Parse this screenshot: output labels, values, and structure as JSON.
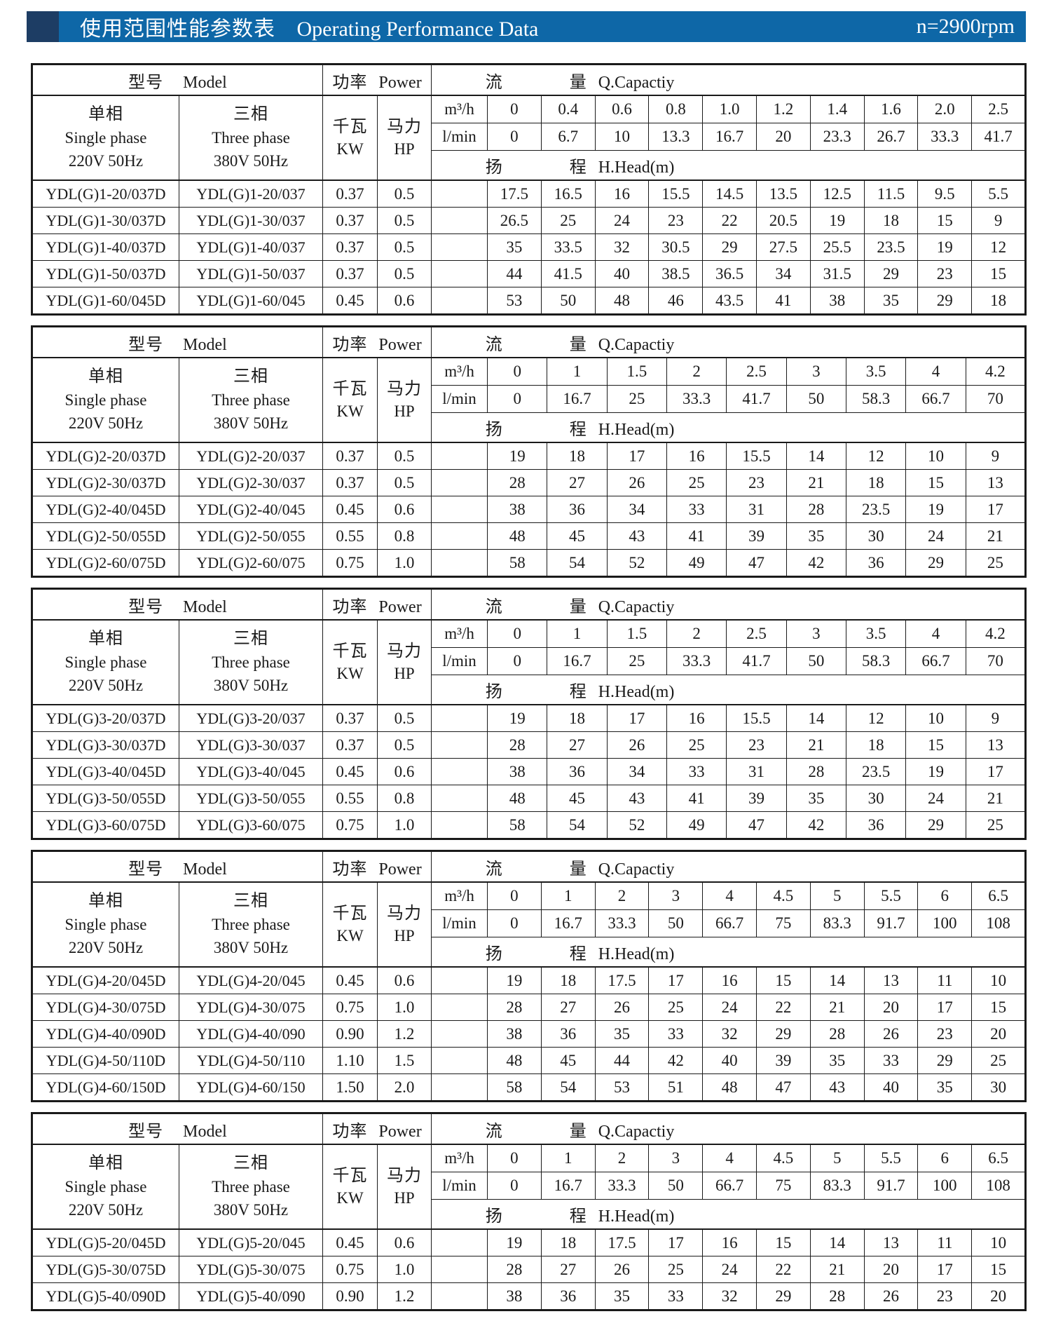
{
  "header": {
    "title_zh": "使用范围性能参数表",
    "title_en": "Operating Performance Data",
    "rpm": "n=2900rpm",
    "bar_color": "#0e67a7",
    "accent_color": "#1d3d64"
  },
  "labels": {
    "model_zh": "型号",
    "model_en": "Model",
    "power_zh": "功率",
    "power_en": "Power",
    "capacity_zh1": "流",
    "capacity_zh2": "量",
    "capacity_en": "Q.Capactiy",
    "single_zh": "单相",
    "single_en": "Single phase",
    "single_volt": "220V 50Hz",
    "three_zh": "三相",
    "three_en": "Three phase",
    "three_volt": "380V 50Hz",
    "kw_zh": "千瓦",
    "kw_en": "KW",
    "hp_zh": "马力",
    "hp_en": "HP",
    "m3h_unit": "m³/h",
    "lmin_unit": "l/min",
    "head_zh1": "扬",
    "head_zh2": "程",
    "head_en": "H.Head(m)"
  },
  "tables": [
    {
      "m3h": [
        "0",
        "0.4",
        "0.6",
        "0.8",
        "1.0",
        "1.2",
        "1.4",
        "1.6",
        "2.0",
        "2.5"
      ],
      "lmin": [
        "0",
        "6.7",
        "10",
        "13.3",
        "16.7",
        "20",
        "23.3",
        "26.7",
        "33.3",
        "41.7"
      ],
      "rows": [
        {
          "single": "YDL(G)1-20/037D",
          "three": "YDL(G)1-20/037",
          "kw": "0.37",
          "hp": "0.5",
          "head": [
            "17.5",
            "16.5",
            "16",
            "15.5",
            "14.5",
            "13.5",
            "12.5",
            "11.5",
            "9.5",
            "5.5"
          ]
        },
        {
          "single": "YDL(G)1-30/037D",
          "three": "YDL(G)1-30/037",
          "kw": "0.37",
          "hp": "0.5",
          "head": [
            "26.5",
            "25",
            "24",
            "23",
            "22",
            "20.5",
            "19",
            "18",
            "15",
            "9"
          ]
        },
        {
          "single": "YDL(G)1-40/037D",
          "three": "YDL(G)1-40/037",
          "kw": "0.37",
          "hp": "0.5",
          "head": [
            "35",
            "33.5",
            "32",
            "30.5",
            "29",
            "27.5",
            "25.5",
            "23.5",
            "19",
            "12"
          ]
        },
        {
          "single": "YDL(G)1-50/037D",
          "three": "YDL(G)1-50/037",
          "kw": "0.37",
          "hp": "0.5",
          "head": [
            "44",
            "41.5",
            "40",
            "38.5",
            "36.5",
            "34",
            "31.5",
            "29",
            "23",
            "15"
          ]
        },
        {
          "single": "YDL(G)1-60/045D",
          "three": "YDL(G)1-60/045",
          "kw": "0.45",
          "hp": "0.6",
          "head": [
            "53",
            "50",
            "48",
            "46",
            "43.5",
            "41",
            "38",
            "35",
            "29",
            "18"
          ]
        }
      ]
    },
    {
      "m3h": [
        "0",
        "1",
        "1.5",
        "2",
        "2.5",
        "3",
        "3.5",
        "4",
        "4.2"
      ],
      "lmin": [
        "0",
        "16.7",
        "25",
        "33.3",
        "41.7",
        "50",
        "58.3",
        "66.7",
        "70"
      ],
      "rows": [
        {
          "single": "YDL(G)2-20/037D",
          "three": "YDL(G)2-20/037",
          "kw": "0.37",
          "hp": "0.5",
          "head": [
            "19",
            "18",
            "17",
            "16",
            "15.5",
            "14",
            "12",
            "10",
            "9"
          ]
        },
        {
          "single": "YDL(G)2-30/037D",
          "three": "YDL(G)2-30/037",
          "kw": "0.37",
          "hp": "0.5",
          "head": [
            "28",
            "27",
            "26",
            "25",
            "23",
            "21",
            "18",
            "15",
            "13"
          ]
        },
        {
          "single": "YDL(G)2-40/045D",
          "three": "YDL(G)2-40/045",
          "kw": "0.45",
          "hp": "0.6",
          "head": [
            "38",
            "36",
            "34",
            "33",
            "31",
            "28",
            "23.5",
            "19",
            "17"
          ]
        },
        {
          "single": "YDL(G)2-50/055D",
          "three": "YDL(G)2-50/055",
          "kw": "0.55",
          "hp": "0.8",
          "head": [
            "48",
            "45",
            "43",
            "41",
            "39",
            "35",
            "30",
            "24",
            "21"
          ]
        },
        {
          "single": "YDL(G)2-60/075D",
          "three": "YDL(G)2-60/075",
          "kw": "0.75",
          "hp": "1.0",
          "head": [
            "58",
            "54",
            "52",
            "49",
            "47",
            "42",
            "36",
            "29",
            "25"
          ]
        }
      ]
    },
    {
      "m3h": [
        "0",
        "1",
        "1.5",
        "2",
        "2.5",
        "3",
        "3.5",
        "4",
        "4.2"
      ],
      "lmin": [
        "0",
        "16.7",
        "25",
        "33.3",
        "41.7",
        "50",
        "58.3",
        "66.7",
        "70"
      ],
      "rows": [
        {
          "single": "YDL(G)3-20/037D",
          "three": "YDL(G)3-20/037",
          "kw": "0.37",
          "hp": "0.5",
          "head": [
            "19",
            "18",
            "17",
            "16",
            "15.5",
            "14",
            "12",
            "10",
            "9"
          ]
        },
        {
          "single": "YDL(G)3-30/037D",
          "three": "YDL(G)3-30/037",
          "kw": "0.37",
          "hp": "0.5",
          "head": [
            "28",
            "27",
            "26",
            "25",
            "23",
            "21",
            "18",
            "15",
            "13"
          ]
        },
        {
          "single": "YDL(G)3-40/045D",
          "three": "YDL(G)3-40/045",
          "kw": "0.45",
          "hp": "0.6",
          "head": [
            "38",
            "36",
            "34",
            "33",
            "31",
            "28",
            "23.5",
            "19",
            "17"
          ]
        },
        {
          "single": "YDL(G)3-50/055D",
          "three": "YDL(G)3-50/055",
          "kw": "0.55",
          "hp": "0.8",
          "head": [
            "48",
            "45",
            "43",
            "41",
            "39",
            "35",
            "30",
            "24",
            "21"
          ]
        },
        {
          "single": "YDL(G)3-60/075D",
          "three": "YDL(G)3-60/075",
          "kw": "0.75",
          "hp": "1.0",
          "head": [
            "58",
            "54",
            "52",
            "49",
            "47",
            "42",
            "36",
            "29",
            "25"
          ]
        }
      ]
    },
    {
      "m3h": [
        "0",
        "1",
        "2",
        "3",
        "4",
        "4.5",
        "5",
        "5.5",
        "6",
        "6.5"
      ],
      "lmin": [
        "0",
        "16.7",
        "33.3",
        "50",
        "66.7",
        "75",
        "83.3",
        "91.7",
        "100",
        "108"
      ],
      "rows": [
        {
          "single": "YDL(G)4-20/045D",
          "three": "YDL(G)4-20/045",
          "kw": "0.45",
          "hp": "0.6",
          "head": [
            "19",
            "18",
            "17.5",
            "17",
            "16",
            "15",
            "14",
            "13",
            "11",
            "10"
          ]
        },
        {
          "single": "YDL(G)4-30/075D",
          "three": "YDL(G)4-30/075",
          "kw": "0.75",
          "hp": "1.0",
          "head": [
            "28",
            "27",
            "26",
            "25",
            "24",
            "22",
            "21",
            "20",
            "17",
            "15"
          ]
        },
        {
          "single": "YDL(G)4-40/090D",
          "three": "YDL(G)4-40/090",
          "kw": "0.90",
          "hp": "1.2",
          "head": [
            "38",
            "36",
            "35",
            "33",
            "32",
            "29",
            "28",
            "26",
            "23",
            "20"
          ]
        },
        {
          "single": "YDL(G)4-50/110D",
          "three": "YDL(G)4-50/110",
          "kw": "1.10",
          "hp": "1.5",
          "head": [
            "48",
            "45",
            "44",
            "42",
            "40",
            "39",
            "35",
            "33",
            "29",
            "25"
          ]
        },
        {
          "single": "YDL(G)4-60/150D",
          "three": "YDL(G)4-60/150",
          "kw": "1.50",
          "hp": "2.0",
          "head": [
            "58",
            "54",
            "53",
            "51",
            "48",
            "47",
            "43",
            "40",
            "35",
            "30"
          ]
        }
      ]
    },
    {
      "m3h": [
        "0",
        "1",
        "2",
        "3",
        "4",
        "4.5",
        "5",
        "5.5",
        "6",
        "6.5"
      ],
      "lmin": [
        "0",
        "16.7",
        "33.3",
        "50",
        "66.7",
        "75",
        "83.3",
        "91.7",
        "100",
        "108"
      ],
      "rows": [
        {
          "single": "YDL(G)5-20/045D",
          "three": "YDL(G)5-20/045",
          "kw": "0.45",
          "hp": "0.6",
          "head": [
            "19",
            "18",
            "17.5",
            "17",
            "16",
            "15",
            "14",
            "13",
            "11",
            "10"
          ]
        },
        {
          "single": "YDL(G)5-30/075D",
          "three": "YDL(G)5-30/075",
          "kw": "0.75",
          "hp": "1.0",
          "head": [
            "28",
            "27",
            "26",
            "25",
            "24",
            "22",
            "21",
            "20",
            "17",
            "15"
          ]
        },
        {
          "single": "YDL(G)5-40/090D",
          "three": "YDL(G)5-40/090",
          "kw": "0.90",
          "hp": "1.2",
          "head": [
            "38",
            "36",
            "35",
            "33",
            "32",
            "29",
            "28",
            "26",
            "23",
            "20"
          ]
        }
      ]
    }
  ]
}
